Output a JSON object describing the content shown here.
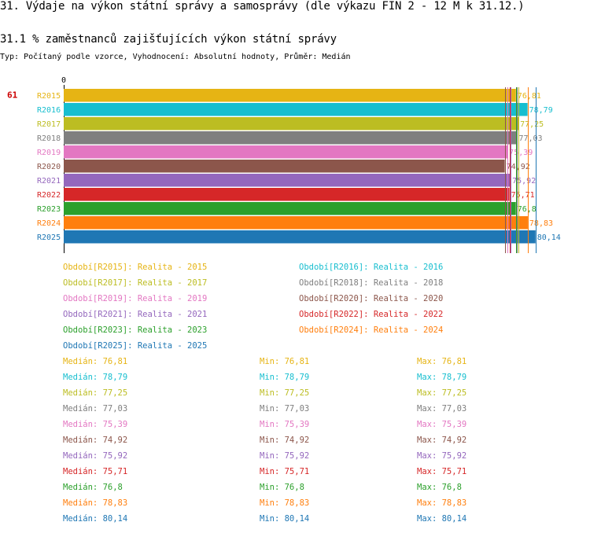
{
  "page": {
    "title": "31. Výdaje na výkon státní správy a samosprávy (dle výkazu FIN 2 - 12 M k 31.12.)",
    "section_title": "31.1 % zaměstnanců zajišťujících výkon státní správy",
    "subtitle": "Typ: Počítaný podle vzorce, Vyhodnocení: Absolutní hodnoty, Průměr: Medián"
  },
  "chart_data": {
    "type": "bar",
    "orientation": "horizontal",
    "title": "31.1 % zaměstnanců zajišťujících výkon státní správy",
    "axis_zero_label": "0",
    "row_marker": "61",
    "categories": [
      "R2015",
      "R2016",
      "R2017",
      "R2018",
      "R2019",
      "R2020",
      "R2021",
      "R2022",
      "R2023",
      "R2024",
      "R2025"
    ],
    "values": [
      76.81,
      78.79,
      77.25,
      77.03,
      75.39,
      74.92,
      75.92,
      75.71,
      76.8,
      78.83,
      80.14
    ],
    "value_labels": [
      "76,81",
      "78,79",
      "77,25",
      "77,03",
      "75,39",
      "74,92",
      "75,92",
      "75,71",
      "76,8",
      "78,83",
      "80,14"
    ],
    "colors": [
      "#e6b414",
      "#17becf",
      "#bcbd22",
      "#7f7f7f",
      "#e377c2",
      "#8c564b",
      "#9467bd",
      "#d62728",
      "#2ca02c",
      "#ff7f0e",
      "#1f77b4"
    ],
    "xlim": [
      0,
      81.1
    ]
  },
  "legend": [
    {
      "label": "Období[R2015]: Realita - 2015",
      "color": "#e6b414"
    },
    {
      "label": "Období[R2016]: Realita - 2016",
      "color": "#17becf"
    },
    {
      "label": "Období[R2017]: Realita - 2017",
      "color": "#bcbd22"
    },
    {
      "label": "Období[R2018]: Realita - 2018",
      "color": "#7f7f7f"
    },
    {
      "label": "Období[R2019]: Realita - 2019",
      "color": "#e377c2"
    },
    {
      "label": "Období[R2020]: Realita - 2020",
      "color": "#8c564b"
    },
    {
      "label": "Období[R2021]: Realita - 2021",
      "color": "#9467bd"
    },
    {
      "label": "Období[R2022]: Realita - 2022",
      "color": "#d62728"
    },
    {
      "label": "Období[R2023]: Realita - 2023",
      "color": "#2ca02c"
    },
    {
      "label": "Období[R2024]: Realita - 2024",
      "color": "#ff7f0e"
    },
    {
      "label": "Období[R2025]: Realita - 2025",
      "color": "#1f77b4"
    }
  ],
  "stats": [
    {
      "median": "Medián: 76,81",
      "min": "Min: 76,81",
      "max": "Max: 76,81",
      "color": "#e6b414"
    },
    {
      "median": "Medián: 78,79",
      "min": "Min: 78,79",
      "max": "Max: 78,79",
      "color": "#17becf"
    },
    {
      "median": "Medián: 77,25",
      "min": "Min: 77,25",
      "max": "Max: 77,25",
      "color": "#bcbd22"
    },
    {
      "median": "Medián: 77,03",
      "min": "Min: 77,03",
      "max": "Max: 77,03",
      "color": "#7f7f7f"
    },
    {
      "median": "Medián: 75,39",
      "min": "Min: 75,39",
      "max": "Max: 75,39",
      "color": "#e377c2"
    },
    {
      "median": "Medián: 74,92",
      "min": "Min: 74,92",
      "max": "Max: 74,92",
      "color": "#8c564b"
    },
    {
      "median": "Medián: 75,92",
      "min": "Min: 75,92",
      "max": "Max: 75,92",
      "color": "#9467bd"
    },
    {
      "median": "Medián: 75,71",
      "min": "Min: 75,71",
      "max": "Max: 75,71",
      "color": "#d62728"
    },
    {
      "median": "Medián: 76,8",
      "min": "Min: 76,8",
      "max": "Max: 76,8",
      "color": "#2ca02c"
    },
    {
      "median": "Medián: 78,83",
      "min": "Min: 78,83",
      "max": "Max: 78,83",
      "color": "#ff7f0e"
    },
    {
      "median": "Medián: 80,14",
      "min": "Min: 80,14",
      "max": "Max: 80,14",
      "color": "#1f77b4"
    }
  ]
}
